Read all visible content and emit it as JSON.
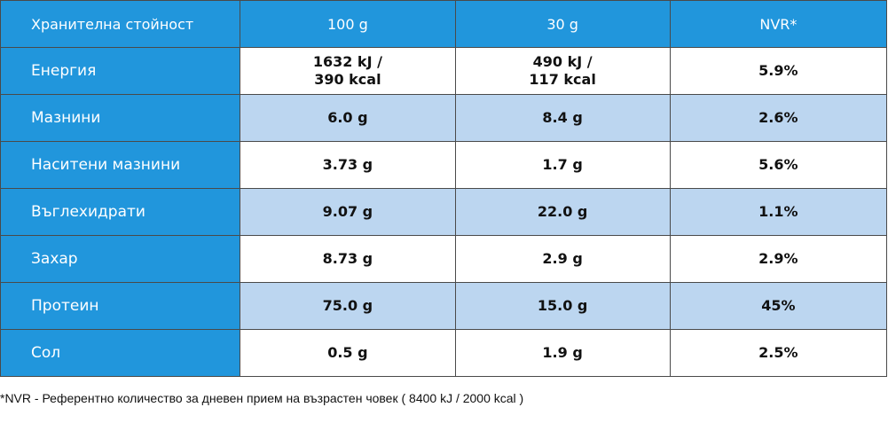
{
  "header": {
    "label": "Хранителна стойност",
    "col_100g": "100 g",
    "col_30g": "30 g",
    "col_nvr": "NVR*"
  },
  "rows": [
    {
      "name": "Енергия",
      "v100": [
        "1632 kJ /",
        "390 kcal"
      ],
      "v30": [
        "490 kJ /",
        "117 kcal"
      ],
      "nvr": "5.9%"
    },
    {
      "name": "Мазнини",
      "v100": [
        "6.0 g"
      ],
      "v30": [
        "8.4 g"
      ],
      "nvr": "2.6%"
    },
    {
      "name": "Наситени мазнини",
      "v100": [
        "3.73 g"
      ],
      "v30": [
        "1.7 g"
      ],
      "nvr": "5.6%"
    },
    {
      "name": "Въглехидрати",
      "v100": [
        "9.07 g"
      ],
      "v30": [
        "22.0 g"
      ],
      "nvr": "1.1%"
    },
    {
      "name": "Захар",
      "v100": [
        "8.73 g"
      ],
      "v30": [
        "2.9 g"
      ],
      "nvr": "2.9%"
    },
    {
      "name": "Протеин",
      "v100": [
        "75.0 g"
      ],
      "v30": [
        "15.0 g"
      ],
      "nvr": "45%"
    },
    {
      "name": "Сол",
      "v100": [
        "0.5 g"
      ],
      "v30": [
        "1.9 g"
      ],
      "nvr": "2.5%"
    }
  ],
  "footnote": "*NVR - Референтно количество за дневен прием на възрастен човек ( 8400 kJ / 2000 kcal )",
  "colors": {
    "header_blue": "#2196dc",
    "row_blue": "#bcd6f0",
    "row_white": "#ffffff"
  }
}
